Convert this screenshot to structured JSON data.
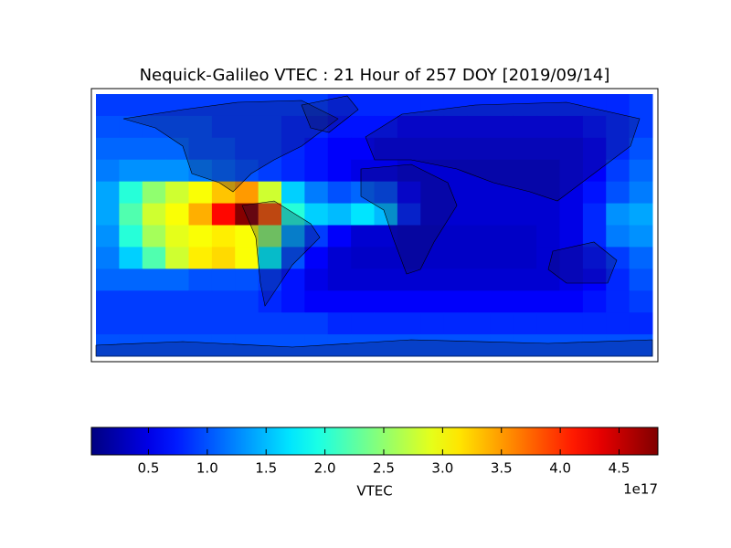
{
  "chart_data": {
    "type": "heatmap",
    "title": "Nequick-Galileo VTEC : 21 Hour of 257 DOY [2019/09/14]",
    "colormap": "jet",
    "values": [
      [
        0.9,
        0.9,
        0.9,
        0.9,
        0.9,
        0.9,
        0.9,
        0.9,
        0.9,
        0.9,
        0.8,
        0.8,
        0.8,
        0.8,
        0.8,
        0.8,
        0.8,
        0.8,
        0.8,
        0.8,
        0.8,
        0.8,
        0.8,
        0.9
      ],
      [
        1.0,
        1.0,
        1.0,
        1.0,
        1.0,
        0.9,
        0.9,
        0.9,
        0.8,
        0.8,
        0.7,
        0.7,
        0.7,
        0.6,
        0.6,
        0.6,
        0.6,
        0.6,
        0.6,
        0.6,
        0.6,
        0.7,
        0.8,
        0.9
      ],
      [
        1.1,
        1.1,
        1.1,
        1.1,
        1.0,
        1.0,
        0.9,
        0.9,
        0.8,
        0.7,
        0.6,
        0.6,
        0.5,
        0.5,
        0.5,
        0.5,
        0.5,
        0.5,
        0.5,
        0.5,
        0.5,
        0.6,
        0.8,
        1.0
      ],
      [
        1.2,
        1.3,
        1.3,
        1.3,
        1.2,
        1.1,
        1.0,
        0.9,
        0.8,
        0.7,
        0.6,
        0.5,
        0.5,
        0.4,
        0.4,
        0.4,
        0.4,
        0.4,
        0.4,
        0.4,
        0.5,
        0.6,
        0.9,
        1.1
      ],
      [
        1.4,
        2.0,
        2.5,
        2.8,
        3.0,
        3.3,
        3.5,
        2.8,
        1.6,
        1.2,
        1.0,
        1.1,
        1.0,
        0.6,
        0.4,
        0.4,
        0.4,
        0.4,
        0.4,
        0.4,
        0.5,
        0.7,
        1.0,
        1.2
      ],
      [
        1.4,
        2.2,
        2.8,
        3.0,
        3.4,
        4.2,
        4.8,
        3.8,
        2.0,
        1.6,
        1.5,
        1.7,
        1.5,
        0.8,
        0.4,
        0.4,
        0.4,
        0.4,
        0.4,
        0.4,
        0.5,
        0.8,
        1.3,
        1.4
      ],
      [
        1.3,
        2.0,
        2.6,
        2.9,
        3.0,
        3.1,
        3.0,
        2.5,
        1.4,
        0.9,
        0.6,
        0.4,
        0.4,
        0.35,
        0.35,
        0.35,
        0.35,
        0.35,
        0.35,
        0.4,
        0.5,
        0.8,
        1.2,
        1.3
      ],
      [
        1.2,
        1.6,
        2.2,
        2.8,
        3.1,
        3.2,
        3.0,
        1.8,
        1.0,
        0.6,
        0.4,
        0.35,
        0.35,
        0.35,
        0.35,
        0.35,
        0.35,
        0.35,
        0.35,
        0.4,
        0.5,
        0.7,
        0.9,
        1.1
      ],
      [
        1.1,
        1.1,
        1.1,
        1.1,
        1.0,
        1.0,
        1.0,
        0.9,
        0.7,
        0.5,
        0.4,
        0.4,
        0.4,
        0.4,
        0.4,
        0.4,
        0.4,
        0.4,
        0.4,
        0.4,
        0.5,
        0.6,
        0.8,
        1.0
      ],
      [
        0.9,
        0.9,
        0.9,
        0.9,
        0.9,
        0.9,
        0.9,
        0.8,
        0.7,
        0.6,
        0.6,
        0.6,
        0.6,
        0.6,
        0.6,
        0.6,
        0.6,
        0.6,
        0.6,
        0.6,
        0.6,
        0.7,
        0.8,
        0.9
      ],
      [
        0.9,
        0.9,
        0.9,
        0.9,
        0.9,
        0.9,
        0.9,
        0.9,
        0.9,
        0.9,
        0.8,
        0.8,
        0.8,
        0.8,
        0.8,
        0.8,
        0.8,
        0.8,
        0.8,
        0.8,
        0.8,
        0.8,
        0.8,
        0.8
      ],
      [
        1.0,
        1.0,
        1.0,
        1.0,
        1.0,
        1.0,
        1.0,
        1.0,
        1.0,
        1.0,
        1.0,
        1.0,
        1.0,
        1.0,
        1.0,
        1.0,
        1.0,
        1.0,
        1.0,
        1.0,
        1.0,
        1.0,
        1.0,
        1.0
      ]
    ],
    "clim": [
      0.015,
      4.83
    ],
    "colorbar": {
      "label": "VTEC",
      "offset_label": "1e17",
      "ticks": [
        0.5,
        {
          "value": 1,
          "label": "1.0"
        },
        1.5,
        {
          "value": 2,
          "label": "2.0"
        },
        2.5,
        {
          "value": 3,
          "label": "3.0"
        },
        3.5,
        {
          "value": 4,
          "label": "4.0"
        },
        4.5
      ]
    }
  }
}
